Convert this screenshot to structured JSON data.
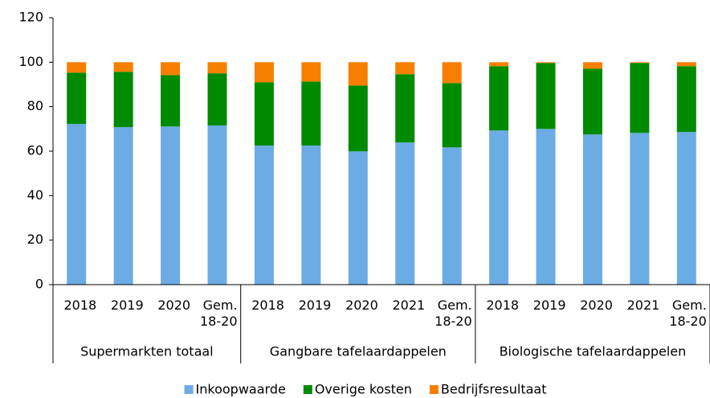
{
  "chart_data": {
    "type": "stacked_bar",
    "groups": [
      {
        "name": "Supermarkten totaal",
        "categories": [
          "2018",
          "2019",
          "2020",
          "Gem. 18-20"
        ]
      },
      {
        "name": "Gangbare tafelaardappelen",
        "categories": [
          "2018",
          "2019",
          "2020",
          "2021",
          "Gem. 18-20"
        ]
      },
      {
        "name": "Biologische tafelaardappelen",
        "categories": [
          "2018",
          "2019",
          "2020",
          "2021",
          "Gem. 18-20"
        ]
      }
    ],
    "series": [
      {
        "name": "Inkoopwaarde",
        "color": "#6cace4",
        "values": [
          72.2,
          70.8,
          71.1,
          71.5,
          62.5,
          62.5,
          59.9,
          63.9,
          61.7,
          69.3,
          70,
          67.5,
          68.2,
          68.6
        ]
      },
      {
        "name": "Overige kosten",
        "color": "#008a00",
        "values": [
          23.1,
          24.9,
          23.1,
          23.5,
          28.5,
          28.8,
          29.6,
          30.7,
          28.9,
          28.9,
          29.6,
          29.6,
          31.4,
          29.6
        ]
      },
      {
        "name": "Bedrijfsresultaat",
        "color": "#f77f00",
        "values": [
          4.7,
          4.3,
          5.8,
          5,
          9,
          8.7,
          10.5,
          5.4,
          9.4,
          1.8,
          0.4,
          2.9,
          0.4,
          1.8
        ]
      }
    ],
    "ylim": [
      0,
      120
    ],
    "yticks": [
      0,
      20,
      40,
      60,
      80,
      100,
      120
    ],
    "legend": "bottom"
  }
}
